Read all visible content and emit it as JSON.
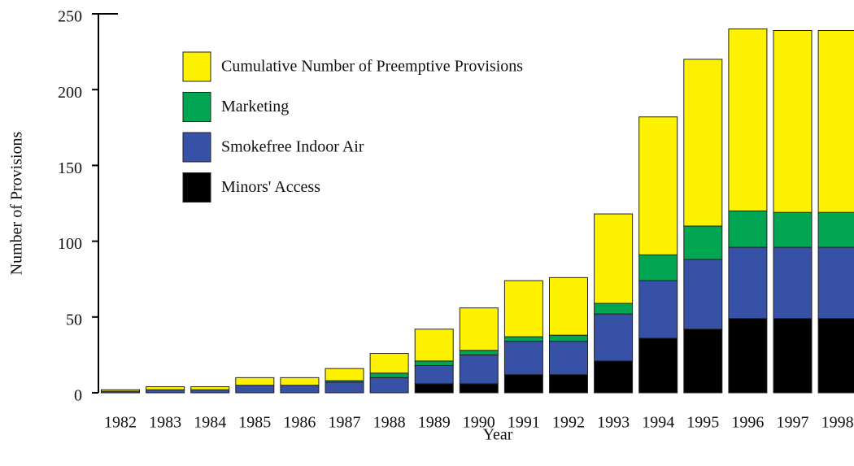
{
  "chart_data": {
    "type": "stacked_bar",
    "x_label": "Year",
    "y_label": "Number of Provisions",
    "categories": [
      "1982",
      "1983",
      "1984",
      "1985",
      "1986",
      "1987",
      "1988",
      "1989",
      "1990",
      "1991",
      "1992",
      "1993",
      "1994",
      "1995",
      "1996",
      "1997",
      "1998"
    ],
    "series": [
      {
        "name": "Minors' Access",
        "color": "#000000",
        "values": [
          0,
          0,
          0,
          0,
          0,
          0,
          0,
          6,
          6,
          12,
          12,
          21,
          36,
          42,
          49,
          49,
          49
        ]
      },
      {
        "name": "Smokefree Indoor Air",
        "color": "#3651a5",
        "values": [
          1,
          2,
          2,
          5,
          5,
          7,
          10,
          12,
          19,
          22,
          22,
          31,
          38,
          46,
          47,
          47,
          47
        ]
      },
      {
        "name": "Marketing",
        "color": "#00a651",
        "values": [
          0,
          0,
          0,
          0,
          0,
          1,
          3,
          3,
          3,
          3,
          4,
          7,
          17,
          22,
          24,
          23,
          23
        ]
      },
      {
        "name": "Cumulative Number of Preemptive Provisions",
        "color": "#fff200",
        "values": [
          1,
          2,
          2,
          5,
          5,
          8,
          13,
          21,
          28,
          37,
          38,
          59,
          91,
          110,
          120,
          120,
          120
        ]
      }
    ],
    "ylim": [
      0,
      250
    ],
    "yticks": [
      0,
      50,
      100,
      150,
      200,
      250
    ]
  }
}
